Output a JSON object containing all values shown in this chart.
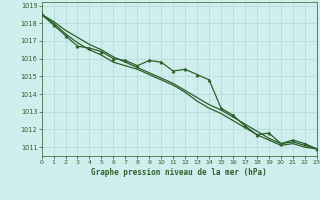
{
  "title": "Graphe pression niveau de la mer (hPa)",
  "background_color": "#d0eeee",
  "grid_color": "#b0d8d8",
  "line_color": "#2a5f2a",
  "xlim": [
    0,
    23
  ],
  "ylim": [
    1010.5,
    1019.2
  ],
  "yticks": [
    1011,
    1012,
    1013,
    1014,
    1015,
    1016,
    1017,
    1018,
    1019
  ],
  "xticks": [
    0,
    1,
    2,
    3,
    4,
    5,
    6,
    7,
    8,
    9,
    10,
    11,
    12,
    13,
    14,
    15,
    16,
    17,
    18,
    19,
    20,
    21,
    22,
    23
  ],
  "series_smooth_x": [
    0,
    1,
    2,
    3,
    4,
    5,
    6,
    7,
    8,
    9,
    10,
    11,
    12,
    13,
    14,
    15,
    16,
    17,
    18,
    19,
    20,
    21,
    22,
    23
  ],
  "series_smooth_y": [
    1018.5,
    1018.1,
    1017.6,
    1017.2,
    1016.8,
    1016.5,
    1016.1,
    1015.8,
    1015.5,
    1015.2,
    1014.9,
    1014.6,
    1014.2,
    1013.8,
    1013.4,
    1013.1,
    1012.7,
    1012.3,
    1011.9,
    1011.5,
    1011.2,
    1011.3,
    1011.1,
    1010.9
  ],
  "series_jagged_x": [
    0,
    1,
    2,
    3,
    4,
    5,
    6,
    7,
    8,
    9,
    10,
    11,
    12,
    13,
    14,
    15,
    16,
    17,
    18,
    19,
    20,
    21,
    22,
    23
  ],
  "series_jagged_y": [
    1018.5,
    1017.9,
    1017.3,
    1016.7,
    1016.6,
    1016.4,
    1016.0,
    1015.9,
    1015.6,
    1015.9,
    1015.8,
    1015.3,
    1015.4,
    1015.1,
    1014.8,
    1013.2,
    1012.8,
    1012.2,
    1011.7,
    1011.8,
    1011.2,
    1011.4,
    1011.2,
    1010.9
  ],
  "series_lower_x": [
    0,
    1,
    2,
    3,
    4,
    5,
    6,
    7,
    8,
    9,
    10,
    11,
    12,
    13,
    14,
    15,
    16,
    17,
    18,
    19,
    20,
    21,
    22,
    23
  ],
  "series_lower_y": [
    1018.5,
    1018.0,
    1017.4,
    1016.9,
    1016.5,
    1016.2,
    1015.8,
    1015.6,
    1015.4,
    1015.1,
    1014.8,
    1014.5,
    1014.1,
    1013.6,
    1013.2,
    1012.9,
    1012.5,
    1012.1,
    1011.7,
    1011.4,
    1011.1,
    1011.2,
    1011.0,
    1010.9
  ]
}
